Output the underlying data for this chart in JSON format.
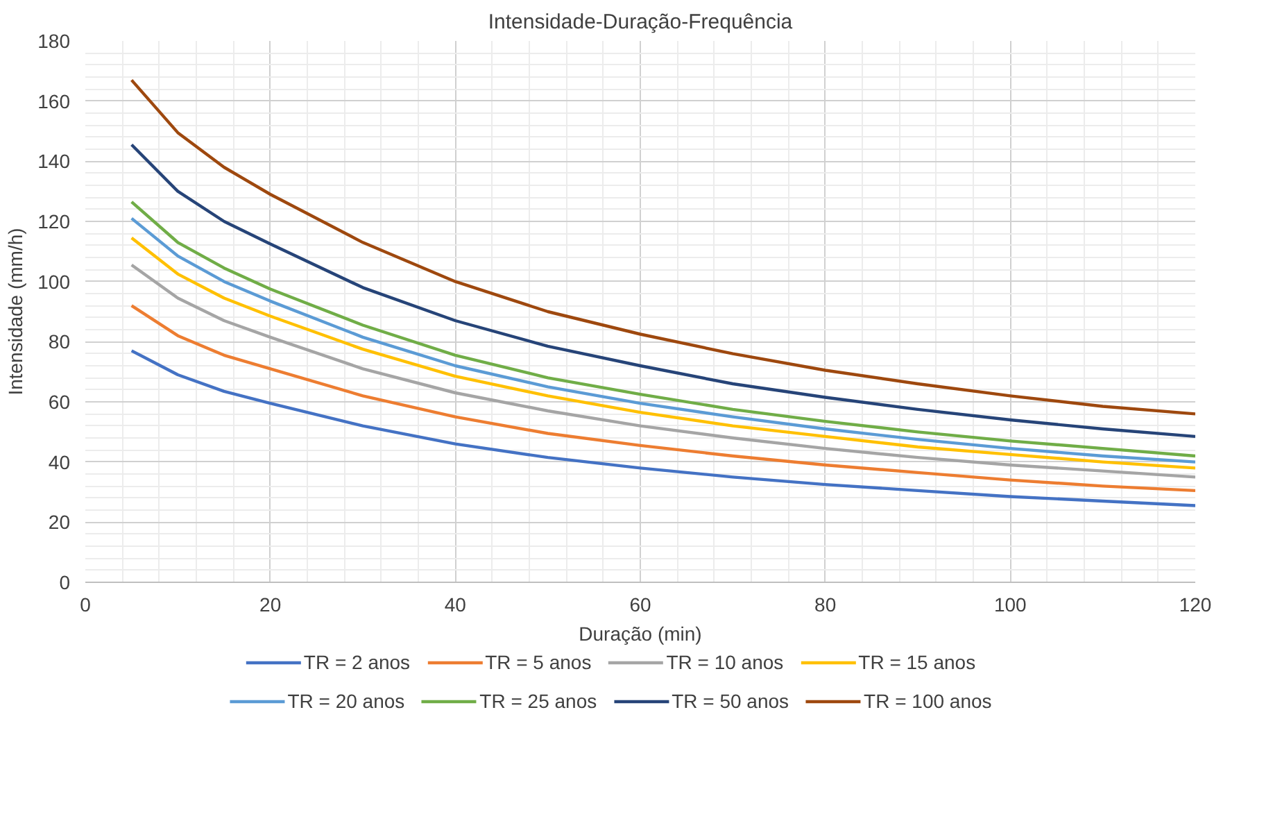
{
  "chart_data": {
    "type": "line",
    "title": "Intensidade-Duração-Frequência",
    "xlabel": "Duração (min)",
    "ylabel": "Intensidade (mm/h)",
    "x": [
      5,
      10,
      15,
      20,
      30,
      40,
      50,
      60,
      70,
      80,
      90,
      100,
      110,
      120
    ],
    "series": [
      {
        "name": "TR = 2 anos",
        "color": "#4472c4",
        "values": [
          77,
          69,
          63.5,
          59.5,
          52,
          46,
          41.5,
          38,
          35,
          32.5,
          30.5,
          28.5,
          27,
          25.5
        ]
      },
      {
        "name": "TR = 5 anos",
        "color": "#ed7d31",
        "values": [
          92,
          82,
          75.5,
          71,
          62,
          55,
          49.5,
          45.5,
          42,
          39,
          36.5,
          34,
          32,
          30.5
        ]
      },
      {
        "name": "TR = 10 anos",
        "color": "#a5a5a5",
        "values": [
          105.5,
          94.5,
          87,
          81.5,
          71,
          63,
          57,
          52,
          48,
          44.5,
          41.5,
          39,
          37,
          35
        ]
      },
      {
        "name": "TR = 15 anos",
        "color": "#ffc000",
        "values": [
          114.5,
          102.5,
          94.5,
          88.5,
          77.5,
          68.5,
          62,
          56.5,
          52,
          48.5,
          45,
          42.5,
          40,
          38
        ]
      },
      {
        "name": "TR = 20 anos",
        "color": "#5b9bd5",
        "values": [
          121,
          108.5,
          100,
          93.5,
          81.5,
          72,
          65,
          59.5,
          55,
          51,
          47.5,
          44.5,
          42,
          40
        ]
      },
      {
        "name": "TR = 25 anos",
        "color": "#70ad47",
        "values": [
          126.5,
          113,
          104.5,
          97.5,
          85.5,
          75.5,
          68,
          62.5,
          57.5,
          53.5,
          50,
          47,
          44.5,
          42
        ]
      },
      {
        "name": "TR = 50 anos",
        "color": "#264478",
        "values": [
          145.5,
          130,
          120,
          112.5,
          98,
          87,
          78.5,
          72,
          66,
          61.5,
          57.5,
          54,
          51,
          48.5
        ]
      },
      {
        "name": "TR = 100 anos",
        "color": "#9e480e",
        "values": [
          167,
          149.5,
          138,
          129,
          113,
          100,
          90,
          82.5,
          76,
          70.5,
          66,
          62,
          58.5,
          56
        ]
      }
    ],
    "xlim": [
      0,
      120
    ],
    "xticks": [
      0,
      20,
      40,
      60,
      80,
      100,
      120
    ],
    "ylim": [
      0,
      180
    ],
    "yticks": [
      0,
      20,
      40,
      60,
      80,
      100,
      120,
      140,
      160,
      180
    ],
    "grid": true,
    "legend": "bottom",
    "marker": "none",
    "line_style": "solid"
  }
}
